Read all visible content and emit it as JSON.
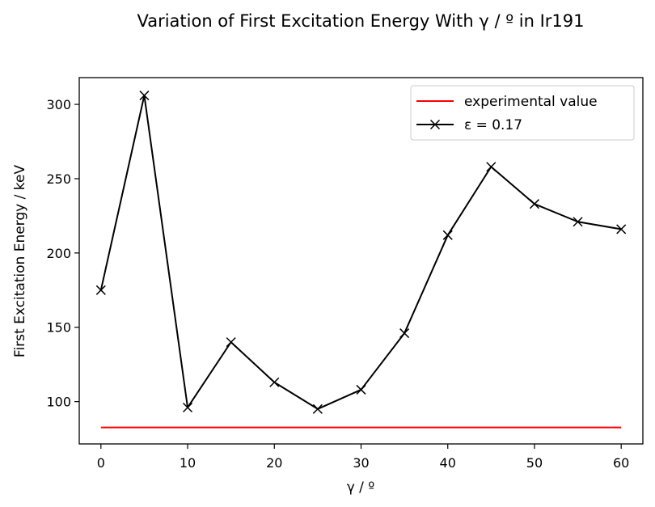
{
  "chart_data": {
    "type": "line",
    "title": "Variation of First Excitation Energy With γ / º in Ir191",
    "xlabel": "γ / º",
    "ylabel": "First Excitation Energy / keV",
    "xlim": [
      -2.5,
      62.5
    ],
    "ylim": [
      71.5,
      318
    ],
    "xticks": [
      0,
      10,
      20,
      30,
      40,
      50,
      60
    ],
    "yticks": [
      100,
      150,
      200,
      250,
      300
    ],
    "grid": false,
    "legend_position": "top-right",
    "series": [
      {
        "name": "experimental value",
        "color": "#ff0000",
        "marker": "none",
        "x": [
          0,
          60
        ],
        "y": [
          82.6,
          82.6
        ]
      },
      {
        "name": "ε = 0.17",
        "color": "#000000",
        "marker": "x",
        "x": [
          0,
          5,
          10,
          15,
          20,
          25,
          30,
          35,
          40,
          45,
          50,
          55,
          60
        ],
        "y": [
          175,
          306,
          96,
          140,
          113,
          95,
          108,
          146,
          212,
          258,
          233,
          221,
          216
        ]
      }
    ]
  }
}
